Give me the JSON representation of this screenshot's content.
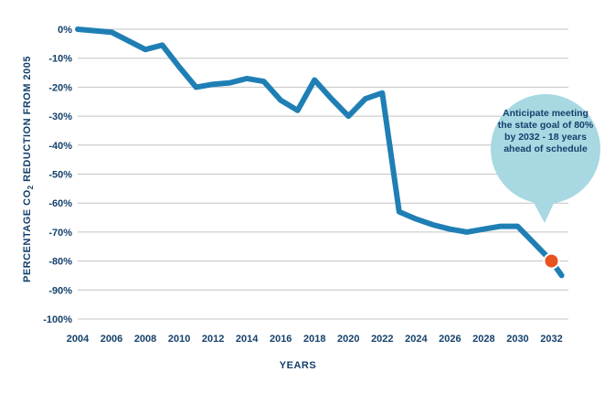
{
  "chart_data": {
    "type": "line",
    "xlabel": "YEARS",
    "ylabel": "PERCENTAGE CO",
    "ylabel_subscript": "2",
    "ylabel_suffix": " REDUCTION FROM 2005",
    "xlim": [
      2004,
      2033
    ],
    "ylim": [
      -100,
      0
    ],
    "x_ticks": [
      "2004",
      "2006",
      "2008",
      "2010",
      "2012",
      "2014",
      "2016",
      "2018",
      "2020",
      "2022",
      "2024",
      "2026",
      "2028",
      "2030",
      "2032"
    ],
    "y_ticks": [
      "0%",
      "-10%",
      "-20%",
      "-30%",
      "-40%",
      "-50%",
      "-60%",
      "-70%",
      "-80%",
      "-90%",
      "-100%"
    ],
    "grid": true,
    "series": [
      {
        "color": "#1f7fb5",
        "x": [
          2004,
          2006,
          2007,
          2008,
          2009,
          2010,
          2011,
          2012,
          2013,
          2014,
          2015,
          2016,
          2017,
          2018,
          2019,
          2020,
          2021,
          2022,
          2023,
          2024,
          2025,
          2026,
          2027,
          2028,
          2029,
          2030,
          2031,
          2032,
          2032.6
        ],
        "y": [
          0,
          -1,
          -4,
          -7,
          -5.5,
          -13,
          -20,
          -19,
          -18.5,
          -17,
          -18,
          -24.5,
          -28,
          -17.5,
          -24,
          -30,
          -24,
          -22,
          -63,
          -65.5,
          -67.5,
          -69,
          -70,
          -69,
          -68,
          -68,
          -74,
          -80,
          -85
        ]
      }
    ],
    "marker": {
      "x": 2032,
      "y": -80,
      "color": "#e8531f"
    },
    "annotation": {
      "lines": [
        "Anticipate meeting",
        "the state goal of 80%",
        "by 2032 - 18 years",
        "ahead of schedule"
      ],
      "color": "#a8d8e2"
    }
  }
}
